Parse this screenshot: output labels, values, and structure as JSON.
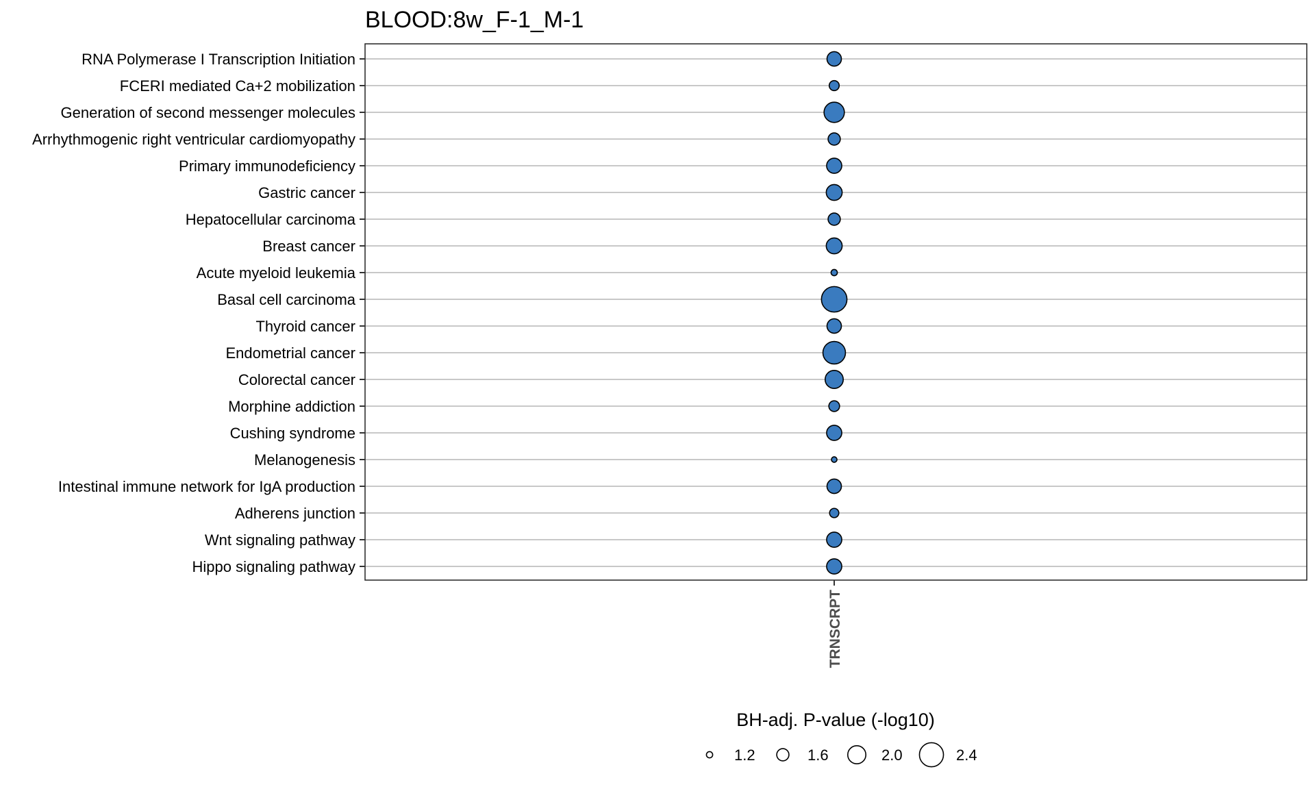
{
  "chart_data": {
    "type": "scatter",
    "title": "BLOOD:8w_F-1_M-1",
    "x_categories": [
      "TRNSCRPT"
    ],
    "y_categories": [
      "RNA Polymerase I Transcription Initiation",
      "FCERI mediated Ca+2 mobilization",
      "Generation of second messenger molecules",
      "Arrhythmogenic right ventricular cardiomyopathy",
      "Primary immunodeficiency",
      "Gastric cancer",
      "Hepatocellular carcinoma",
      "Breast cancer",
      "Acute myeloid leukemia",
      "Basal cell carcinoma",
      "Thyroid cancer",
      "Endometrial cancer",
      "Colorectal cancer",
      "Morphine addiction",
      "Cushing syndrome",
      "Melanogenesis",
      "Intestinal immune network for IgA production",
      "Adherens junction",
      "Wnt signaling pathway",
      "Hippo signaling pathway"
    ],
    "series": [
      {
        "x": "TRNSCRPT",
        "size_values": [
          1.75,
          1.45,
          2.15,
          1.6,
          1.8,
          1.85,
          1.6,
          1.85,
          1.2,
          2.5,
          1.75,
          2.3,
          2.0,
          1.5,
          1.8,
          1.15,
          1.75,
          1.4,
          1.8,
          1.8
        ]
      }
    ],
    "size_legend": {
      "title": "BH-adj. P-value (-log10)",
      "breaks": [
        1.2,
        1.6,
        2.0,
        2.4
      ],
      "labels": [
        "1.2",
        "1.6",
        "2.0",
        "2.4"
      ],
      "position": "bottom"
    },
    "point_color": "#3a7bbf",
    "point_border": "#000000",
    "grid": "horizontal",
    "gridline_color": "#c8c8c8"
  }
}
